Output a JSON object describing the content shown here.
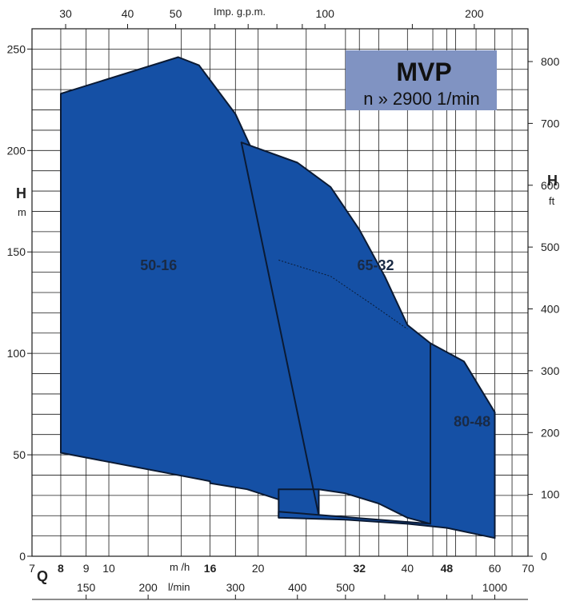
{
  "chart_data": {
    "type": "area",
    "title": "MVP",
    "subtitle": "n » 2900 1/min",
    "colors": {
      "fill": "#1550a5",
      "title_box": "#8093c2",
      "stroke": "#0b1a33",
      "grid": "#1a1a1a"
    },
    "axes": {
      "flow_m3h": {
        "unit": "m /h",
        "scale": "log",
        "range": [
          7,
          70
        ],
        "ticks": [
          {
            "value": 7,
            "label": "7",
            "bold": false
          },
          {
            "value": 8,
            "label": "8",
            "bold": true
          },
          {
            "value": 9,
            "label": "9",
            "bold": false
          },
          {
            "value": 10,
            "label": "10",
            "bold": false
          },
          {
            "value": 16,
            "label": "16",
            "bold": true
          },
          {
            "value": 20,
            "label": "20",
            "bold": false
          },
          {
            "value": 32,
            "label": "32",
            "bold": true
          },
          {
            "value": 40,
            "label": "40",
            "bold": false
          },
          {
            "value": 48,
            "label": "48",
            "bold": true
          },
          {
            "value": 60,
            "label": "60",
            "bold": false
          },
          {
            "value": 70,
            "label": "70",
            "bold": false
          }
        ],
        "minor_gridlines": [
          7,
          8,
          9,
          10,
          12,
          14,
          16,
          18,
          20,
          25,
          30,
          32,
          35,
          40,
          45,
          48,
          50,
          55,
          60,
          65,
          70
        ]
      },
      "flow_lmin": {
        "unit": "l/min",
        "letter": "Q",
        "ticks": [
          {
            "value": 150,
            "label": "150"
          },
          {
            "value": 200,
            "label": "200"
          },
          {
            "value": 300,
            "label": "300"
          },
          {
            "value": 400,
            "label": "400"
          },
          {
            "value": 500,
            "label": "500"
          },
          {
            "value": 1000,
            "label": "1000"
          }
        ],
        "minor_ticks": [
          600,
          700,
          800,
          900
        ]
      },
      "flow_impgpm": {
        "unit": "Imp. g.p.m.",
        "ticks": [
          {
            "value": 30,
            "label": "30"
          },
          {
            "value": 40,
            "label": "40"
          },
          {
            "value": 50,
            "label": "50"
          },
          {
            "value": 100,
            "label": "100"
          },
          {
            "value": 200,
            "label": "200"
          }
        ],
        "minor_ticks": [
          60,
          70,
          80,
          90,
          150
        ]
      },
      "head_m": {
        "letter": "H",
        "unit": "m",
        "range": [
          0,
          250
        ],
        "ticks": [
          0,
          50,
          100,
          150,
          200,
          250
        ]
      },
      "head_ft": {
        "letter": "H",
        "unit": "ft",
        "ticks": [
          0,
          100,
          200,
          300,
          400,
          500,
          600,
          700,
          800
        ]
      }
    },
    "series": [
      {
        "name": "50-16",
        "label_at": {
          "q": 12.6,
          "h": 141
        },
        "outline": [
          [
            8,
            51
          ],
          [
            8,
            228
          ],
          [
            13.8,
            246
          ],
          [
            15.2,
            242
          ],
          [
            18,
            218
          ],
          [
            22,
            172
          ],
          [
            26.5,
            107
          ],
          [
            26.5,
            20
          ],
          [
            22,
            28
          ],
          [
            19,
            33
          ],
          [
            16,
            36
          ],
          [
            16,
            37
          ],
          [
            8,
            51
          ]
        ]
      },
      {
        "name": "65-32",
        "label_at": {
          "q": 34.5,
          "h": 141
        },
        "outline": [
          [
            18.5,
            204
          ],
          [
            24,
            194
          ],
          [
            28,
            182
          ],
          [
            32,
            161
          ],
          [
            36,
            138
          ],
          [
            40,
            114
          ],
          [
            44.5,
            105
          ],
          [
            44.5,
            16
          ],
          [
            40,
            19
          ],
          [
            35,
            26
          ],
          [
            30,
            31
          ],
          [
            26.5,
            33
          ],
          [
            22,
            33
          ],
          [
            22,
            19
          ],
          [
            26.5,
            20
          ]
        ]
      },
      {
        "name": "80-48",
        "label_at": {
          "q": 54,
          "h": 64
        },
        "outline": [
          [
            44.5,
            105
          ],
          [
            52,
            96
          ],
          [
            60,
            71
          ],
          [
            60,
            9
          ],
          [
            48,
            14
          ],
          [
            40,
            16
          ],
          [
            30,
            18
          ],
          [
            22,
            19
          ],
          [
            22,
            22
          ],
          [
            44.5,
            16
          ]
        ]
      }
    ],
    "dashed_curve": [
      [
        22,
        146
      ],
      [
        28,
        138
      ],
      [
        34,
        124
      ],
      [
        40,
        112
      ]
    ]
  }
}
